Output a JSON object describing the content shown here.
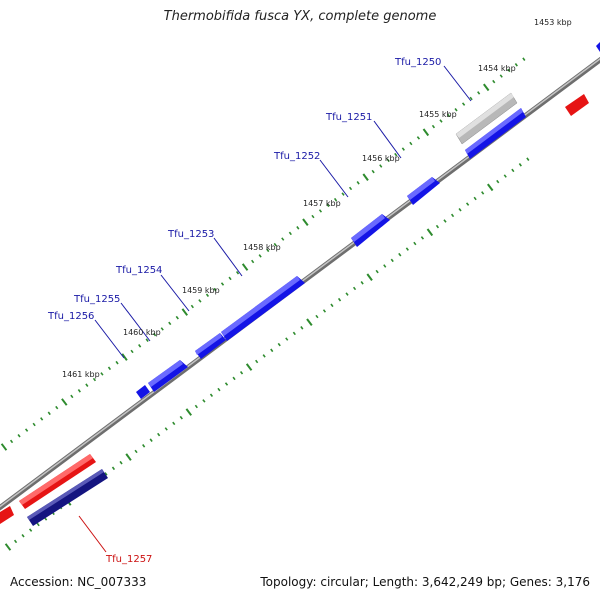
{
  "title": "Thermobifida fusca YX, complete genome",
  "footer": {
    "accession": "Accession: NC_007333",
    "topology": "Topology: circular; Length: 3,642,249 bp; Genes: 3,176"
  },
  "colors": {
    "forward_gene": "#1414e6",
    "reverse_gene": "#e61414",
    "dark_gene": "#141480",
    "pseudo_gene": "#b4b4b4",
    "backbone": "#808080",
    "ticks": "#2e8b2e",
    "gene_label_forward": "#1a1aa6",
    "gene_label_reverse": "#cc1111"
  },
  "kbp_ticks": [
    "1453 kbp",
    "1454 kbp",
    "1455 kbp",
    "1456 kbp",
    "1457 kbp",
    "1458 kbp",
    "1459 kbp",
    "1460 kbp",
    "1461 kbp"
  ],
  "gene_labels": [
    {
      "name": "Tfu_1250",
      "strand": "forward"
    },
    {
      "name": "Tfu_1251",
      "strand": "forward"
    },
    {
      "name": "Tfu_1252",
      "strand": "forward"
    },
    {
      "name": "Tfu_1253",
      "strand": "forward"
    },
    {
      "name": "Tfu_1254",
      "strand": "forward"
    },
    {
      "name": "Tfu_1255",
      "strand": "forward"
    },
    {
      "name": "Tfu_1256",
      "strand": "forward"
    },
    {
      "name": "Tfu_1257",
      "strand": "reverse"
    }
  ]
}
